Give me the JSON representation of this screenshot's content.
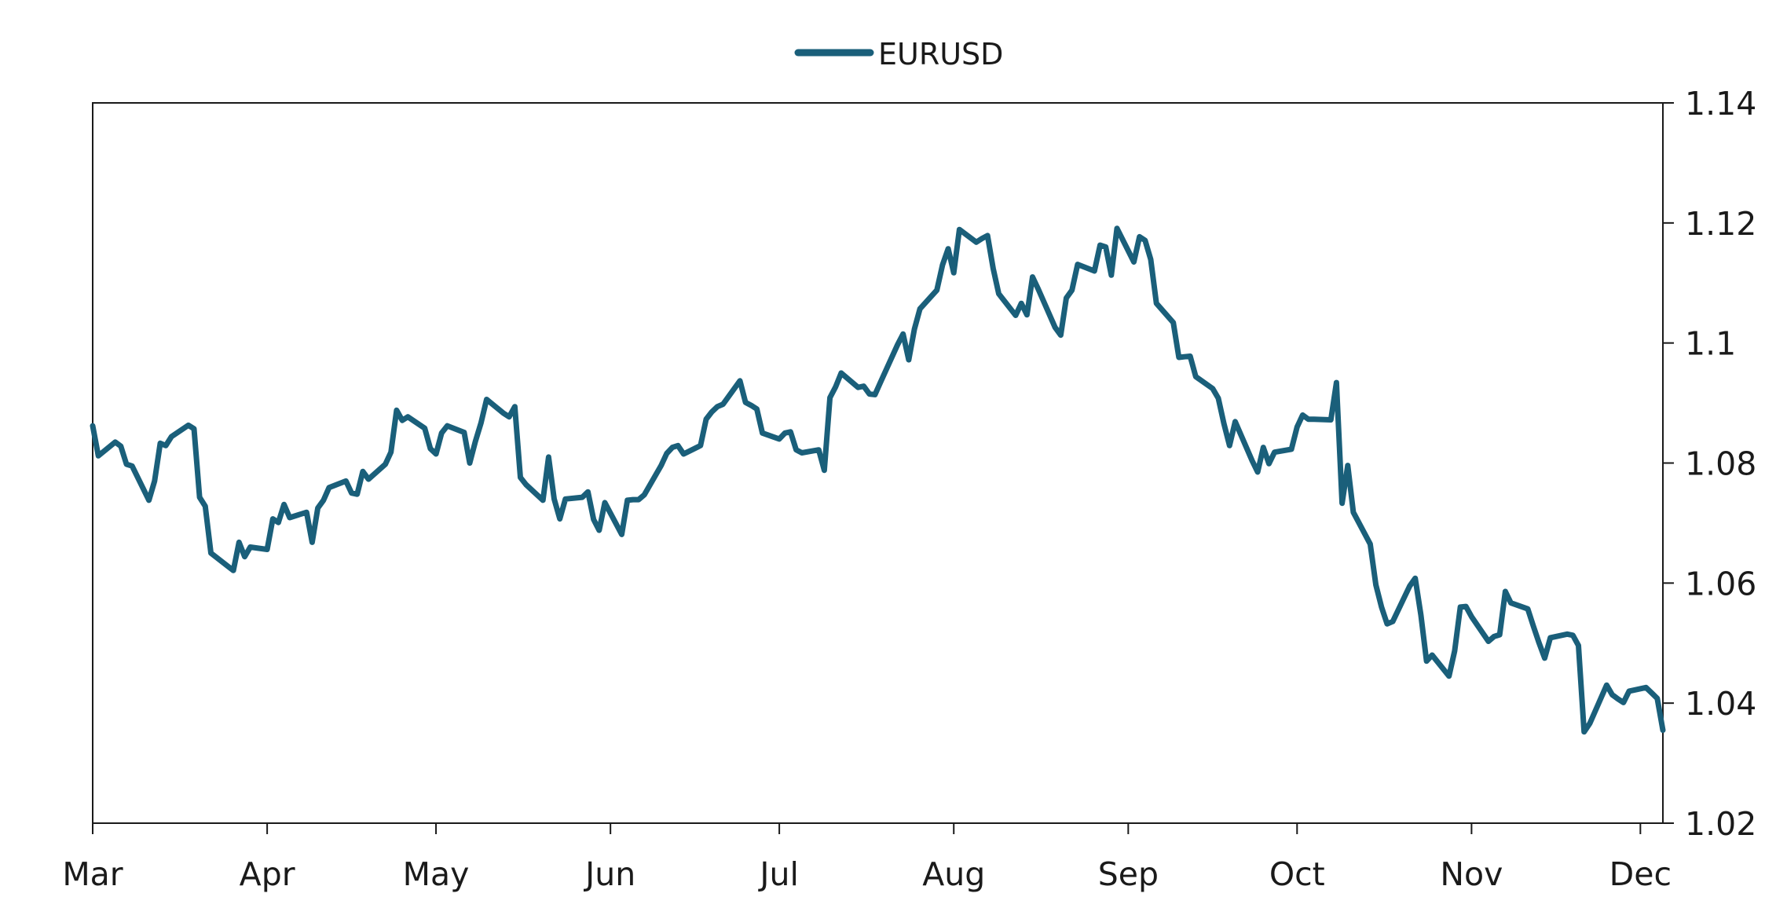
{
  "chart_data": {
    "type": "line",
    "title": "",
    "xlabel": "",
    "ylabel": "",
    "legend": {
      "position": "top-center"
    },
    "grid": false,
    "x_ticks": [
      "Mar",
      "Apr",
      "May",
      "Jun",
      "Jul",
      "Aug",
      "Sep",
      "Oct",
      "Nov",
      "Dec"
    ],
    "y_ticks": [
      "1.02",
      "1.04",
      "1.06",
      "1.08",
      "1.1",
      "1.12",
      "1.14"
    ],
    "ylim": [
      1.02,
      1.14
    ],
    "y_axis_side": "right",
    "series": [
      {
        "name": "EURUSD",
        "color": "#1a5f7a",
        "points": [
          [
            "Mar 1",
            1.0862
          ],
          [
            "Mar 2",
            1.0812
          ],
          [
            "Mar 5",
            1.0835
          ],
          [
            "Mar 6",
            1.0828
          ],
          [
            "Mar 7",
            1.0798
          ],
          [
            "Mar 8",
            1.0795
          ],
          [
            "Mar 11",
            1.0738
          ],
          [
            "Mar 12",
            1.077
          ],
          [
            "Mar 13",
            1.0833
          ],
          [
            "Mar 14",
            1.0829
          ],
          [
            "Mar 15",
            1.0844
          ],
          [
            "Mar 18",
            1.0863
          ],
          [
            "Mar 19",
            1.0857
          ],
          [
            "Mar 20",
            1.0743
          ],
          [
            "Mar 21",
            1.0728
          ],
          [
            "Mar 22",
            1.065
          ],
          [
            "Mar 25",
            1.0628
          ],
          [
            "Mar 26",
            1.0621
          ],
          [
            "Mar 27",
            1.0668
          ],
          [
            "Mar 28",
            1.0644
          ],
          [
            "Mar 29",
            1.066
          ],
          [
            "Apr 1",
            1.0656
          ],
          [
            "Apr 2",
            1.0707
          ],
          [
            "Apr 3",
            1.0701
          ],
          [
            "Apr 4",
            1.0731
          ],
          [
            "Apr 5",
            1.0709
          ],
          [
            "Apr 8",
            1.0718
          ],
          [
            "Apr 9",
            1.0668
          ],
          [
            "Apr 10",
            1.0725
          ],
          [
            "Apr 11",
            1.0738
          ],
          [
            "Apr 12",
            1.0759
          ],
          [
            "Apr 15",
            1.077
          ],
          [
            "Apr 16",
            1.075
          ],
          [
            "Apr 17",
            1.0748
          ],
          [
            "Apr 18",
            1.0786
          ],
          [
            "Apr 19",
            1.0773
          ],
          [
            "Apr 22",
            1.0798
          ],
          [
            "Apr 23",
            1.0818
          ],
          [
            "Apr 24",
            1.0888
          ],
          [
            "Apr 25",
            1.0871
          ],
          [
            "Apr 26",
            1.0877
          ],
          [
            "Apr 29",
            1.0858
          ],
          [
            "Apr 30",
            1.0824
          ],
          [
            "May 1",
            1.0815
          ],
          [
            "May 2",
            1.085
          ],
          [
            "May 3",
            1.0862
          ],
          [
            "May 6",
            1.0851
          ],
          [
            "May 7",
            1.08
          ],
          [
            "May 8",
            1.0836
          ],
          [
            "May 9",
            1.0867
          ],
          [
            "May 10",
            1.0906
          ],
          [
            "May 13",
            1.0883
          ],
          [
            "May 14",
            1.0877
          ],
          [
            "May 15",
            1.0894
          ],
          [
            "May 16",
            1.0776
          ],
          [
            "May 17",
            1.0764
          ],
          [
            "May 20",
            1.0738
          ],
          [
            "May 21",
            1.081
          ],
          [
            "May 22",
            1.074
          ],
          [
            "May 23",
            1.0707
          ],
          [
            "May 24",
            1.074
          ],
          [
            "May 27",
            1.0743
          ],
          [
            "May 28",
            1.0752
          ],
          [
            "May 29",
            1.0706
          ],
          [
            "May 30",
            1.0688
          ],
          [
            "May 31",
            1.0734
          ],
          [
            "Jun 3",
            1.0681
          ],
          [
            "Jun 4",
            1.0738
          ],
          [
            "Jun 5",
            1.0739
          ],
          [
            "Jun 6",
            1.0739
          ],
          [
            "Jun 7",
            1.0747
          ],
          [
            "Jun 10",
            1.0796
          ],
          [
            "Jun 11",
            1.0816
          ],
          [
            "Jun 12",
            1.0826
          ],
          [
            "Jun 13",
            1.0829
          ],
          [
            "Jun 14",
            1.0815
          ],
          [
            "Jun 17",
            1.0829
          ],
          [
            "Jun 18",
            1.0873
          ],
          [
            "Jun 19",
            1.0885
          ],
          [
            "Jun 20",
            1.0894
          ],
          [
            "Jun 21",
            1.0898
          ],
          [
            "Jun 24",
            1.0937
          ],
          [
            "Jun 25",
            1.0901
          ],
          [
            "Jun 26",
            1.0896
          ],
          [
            "Jun 27",
            1.089
          ],
          [
            "Jun 28",
            1.085
          ],
          [
            "Jul 1",
            1.084
          ],
          [
            "Jul 2",
            1.085
          ],
          [
            "Jul 3",
            1.0852
          ],
          [
            "Jul 4",
            1.0822
          ],
          [
            "Jul 5",
            1.0817
          ],
          [
            "Jul 8",
            1.0822
          ],
          [
            "Jul 9",
            1.0788
          ],
          [
            "Jul 10",
            1.0909
          ],
          [
            "Jul 11",
            1.0927
          ],
          [
            "Jul 12",
            1.095
          ],
          [
            "Jul 15",
            1.0926
          ],
          [
            "Jul 16",
            1.0928
          ],
          [
            "Jul 17",
            1.0915
          ],
          [
            "Jul 18",
            1.0914
          ],
          [
            "Jul 19",
            1.0935
          ],
          [
            "Jul 22",
            1.0997
          ],
          [
            "Jul 23",
            1.1015
          ],
          [
            "Jul 24",
            1.0972
          ],
          [
            "Jul 25",
            1.1023
          ],
          [
            "Jul 26",
            1.1057
          ],
          [
            "Jul 29",
            1.1088
          ],
          [
            "Jul 30",
            1.113
          ],
          [
            "Jul 31",
            1.1157
          ],
          [
            "Aug 1",
            1.1117
          ],
          [
            "Aug 2",
            1.1189
          ],
          [
            "Aug 5",
            1.1168
          ],
          [
            "Aug 6",
            1.1174
          ],
          [
            "Aug 7",
            1.1179
          ],
          [
            "Aug 8",
            1.1124
          ],
          [
            "Aug 9",
            1.1082
          ],
          [
            "Aug 12",
            1.1046
          ],
          [
            "Aug 13",
            1.1066
          ],
          [
            "Aug 14",
            1.1047
          ],
          [
            "Aug 15",
            1.111
          ],
          [
            "Aug 16",
            1.109
          ],
          [
            "Aug 19",
            1.1026
          ],
          [
            "Aug 20",
            1.1013
          ],
          [
            "Aug 21",
            1.1075
          ],
          [
            "Aug 22",
            1.1088
          ],
          [
            "Aug 23",
            1.1131
          ],
          [
            "Aug 26",
            1.112
          ],
          [
            "Aug 27",
            1.1163
          ],
          [
            "Aug 28",
            1.116
          ],
          [
            "Aug 29",
            1.1113
          ],
          [
            "Aug 30",
            1.1191
          ],
          [
            "Sep 2",
            1.1135
          ],
          [
            "Sep 3",
            1.1177
          ],
          [
            "Sep 4",
            1.1171
          ],
          [
            "Sep 5",
            1.1139
          ],
          [
            "Sep 6",
            1.1066
          ],
          [
            "Sep 9",
            1.1034
          ],
          [
            "Sep 10",
            1.0976
          ],
          [
            "Sep 11",
            1.0977
          ],
          [
            "Sep 12",
            1.0978
          ],
          [
            "Sep 13",
            1.0944
          ],
          [
            "Sep 16",
            1.0924
          ],
          [
            "Sep 17",
            1.0908
          ],
          [
            "Sep 18",
            1.0866
          ],
          [
            "Sep 19",
            1.0829
          ],
          [
            "Sep 20",
            1.0869
          ],
          [
            "Sep 23",
            1.0804
          ],
          [
            "Sep 24",
            1.0785
          ],
          [
            "Sep 25",
            1.0826
          ],
          [
            "Sep 26",
            1.0799
          ],
          [
            "Sep 27",
            1.0818
          ],
          [
            "Sep 30",
            1.0823
          ],
          [
            "Oct 1",
            1.086
          ],
          [
            "Oct 2",
            1.088
          ],
          [
            "Oct 3",
            1.0873
          ],
          [
            "Oct 4",
            1.0873
          ],
          [
            "Oct 7",
            1.0872
          ],
          [
            "Oct 8",
            1.0934
          ],
          [
            "Oct 9",
            1.0733
          ],
          [
            "Oct 10",
            1.0796
          ],
          [
            "Oct 11",
            1.0718
          ],
          [
            "Oct 14",
            1.0665
          ],
          [
            "Oct 15",
            1.0597
          ],
          [
            "Oct 16",
            1.056
          ],
          [
            "Oct 17",
            1.0532
          ],
          [
            "Oct 18",
            1.0536
          ],
          [
            "Oct 21",
            1.0595
          ],
          [
            "Oct 22",
            1.0608
          ],
          [
            "Oct 23",
            1.0547
          ],
          [
            "Oct 24",
            1.047
          ],
          [
            "Oct 25",
            1.048
          ],
          [
            "Oct 28",
            1.0445
          ],
          [
            "Oct 29",
            1.0487
          ],
          [
            "Oct 30",
            1.056
          ],
          [
            "Oct 31",
            1.0561
          ],
          [
            "Nov 1",
            1.0544
          ],
          [
            "Nov 4",
            1.0503
          ],
          [
            "Nov 5",
            1.0511
          ],
          [
            "Nov 6",
            1.0514
          ],
          [
            "Nov 7",
            1.0586
          ],
          [
            "Nov 8",
            1.0567
          ],
          [
            "Nov 11",
            1.0557
          ],
          [
            "Nov 12",
            1.0528
          ],
          [
            "Nov 13",
            1.05
          ],
          [
            "Nov 14",
            1.0475
          ],
          [
            "Nov 15",
            1.0509
          ],
          [
            "Nov 18",
            1.0515
          ],
          [
            "Nov 19",
            1.0513
          ],
          [
            "Nov 20",
            1.0496
          ],
          [
            "Nov 21",
            1.0352
          ],
          [
            "Nov 22",
            1.0366
          ],
          [
            "Nov 25",
            1.043
          ],
          [
            "Nov 26",
            1.0414
          ],
          [
            "Nov 27",
            1.0407
          ],
          [
            "Nov 28",
            1.0401
          ],
          [
            "Nov 29",
            1.042
          ],
          [
            "Dec 2",
            1.0426
          ],
          [
            "Dec 3",
            1.0417
          ],
          [
            "Dec 4",
            1.0408
          ],
          [
            "Dec 5",
            1.0355
          ]
        ]
      }
    ]
  }
}
